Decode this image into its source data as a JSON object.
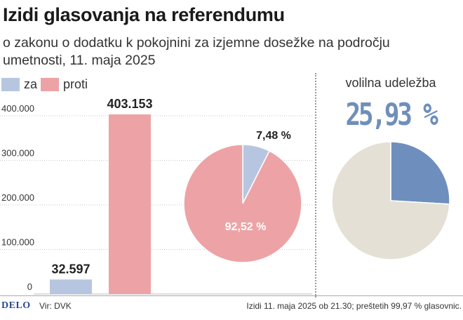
{
  "header": {
    "title": "Izidi glasovanja na referendumu",
    "subtitle": "o zakonu o dodatku k pokojnini za izjemne dosežke na področju umetnosti, 11. maja 2025"
  },
  "legend": [
    {
      "label": "za",
      "color": "#b7c6e0"
    },
    {
      "label": "proti",
      "color": "#eda3a6"
    }
  ],
  "chart_data": [
    {
      "type": "bar",
      "categories": [
        "za",
        "proti"
      ],
      "values": [
        32597,
        403153
      ],
      "value_labels": [
        "32.597",
        "403.153"
      ],
      "colors": [
        "#b7c6e0",
        "#eda3a6"
      ],
      "ylim": [
        0,
        400000
      ],
      "yticks": [
        0,
        100000,
        200000,
        300000,
        400000
      ],
      "ytick_labels": [
        "0",
        "100.000",
        "200.000",
        "300.000",
        "400.000"
      ]
    },
    {
      "type": "pie",
      "labels": [
        "za",
        "proti"
      ],
      "values": [
        7.48,
        92.52
      ],
      "value_labels": [
        "7,48 %",
        "92,52 %"
      ],
      "colors": [
        "#b7c6e0",
        "#eda3a6"
      ]
    },
    {
      "type": "pie",
      "title": "volilna udeležba",
      "values": [
        25.93,
        74.07
      ],
      "value_label": "25,93 %",
      "colors": [
        "#6e8fbd",
        "#e4e0d6"
      ]
    }
  ],
  "footer": {
    "logo": "DELO",
    "source": "Vir: DVK",
    "note": "Izidi 11. maja 2025 ob 21.30; preštetih 99,97 % glasovnic."
  }
}
